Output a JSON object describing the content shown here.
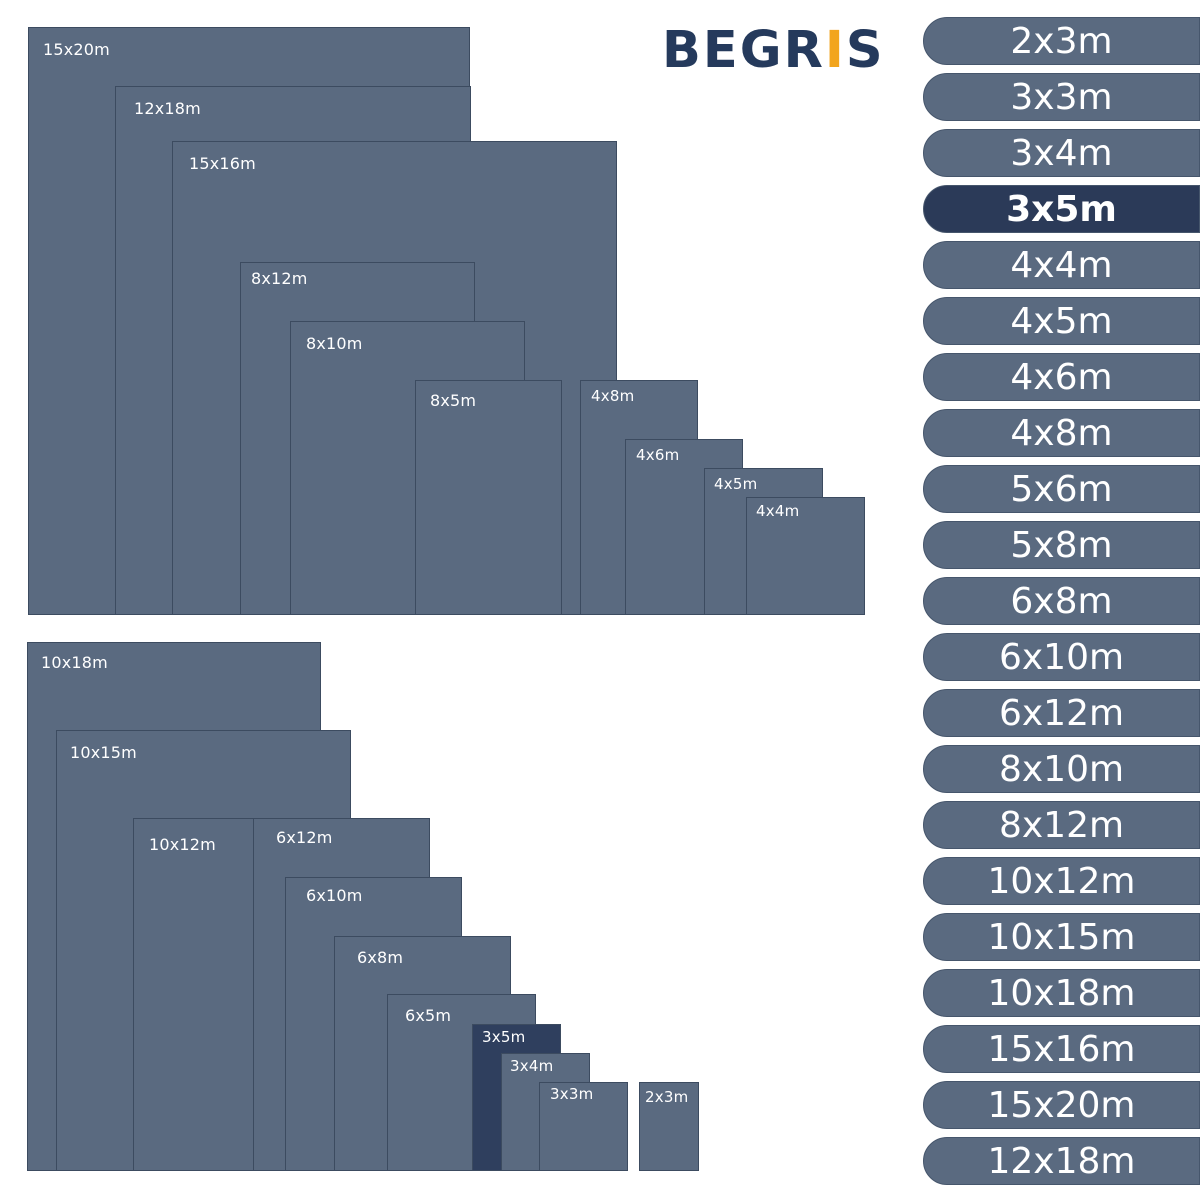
{
  "logo": {
    "prefix": "B",
    "e_glyph": "E",
    "middle": "GR",
    "accent_letter": "I",
    "suffix": "S"
  },
  "colors": {
    "tile": "#5a6a80",
    "selected": "#2b3a58",
    "brand_blue": "#253a5c",
    "brand_accent": "#f2a51d"
  },
  "top_group": [
    {
      "label": "15x20m"
    },
    {
      "label": "12x18m"
    },
    {
      "label": "15x16m"
    },
    {
      "label": "8x12m"
    },
    {
      "label": "8x10m"
    },
    {
      "label": "8x5m"
    },
    {
      "label": "4x8m"
    },
    {
      "label": "4x6m"
    },
    {
      "label": "4x5m"
    },
    {
      "label": "4x4m"
    }
  ],
  "bottom_group": [
    {
      "label": "10x18m"
    },
    {
      "label": "10x15m"
    },
    {
      "label": "10x12m"
    },
    {
      "label": "6x12m"
    },
    {
      "label": "6x10m"
    },
    {
      "label": "6x8m"
    },
    {
      "label": "6x5m"
    },
    {
      "label": "3x5m"
    },
    {
      "label": "3x4m"
    },
    {
      "label": "3x3m"
    },
    {
      "label": "2x3m"
    }
  ],
  "size_list": {
    "selected": "3x5m",
    "items": [
      "2x3m",
      "3x3m",
      "3x4m",
      "3x5m",
      "4x4m",
      "4x5m",
      "4x6m",
      "4x8m",
      "5x6m",
      "5x8m",
      "6x8m",
      "6x10m",
      "6x12m",
      "8x10m",
      "8x12m",
      "10x12m",
      "10x15m",
      "10x18m",
      "15x16m",
      "15x20m",
      "12x18m"
    ]
  }
}
